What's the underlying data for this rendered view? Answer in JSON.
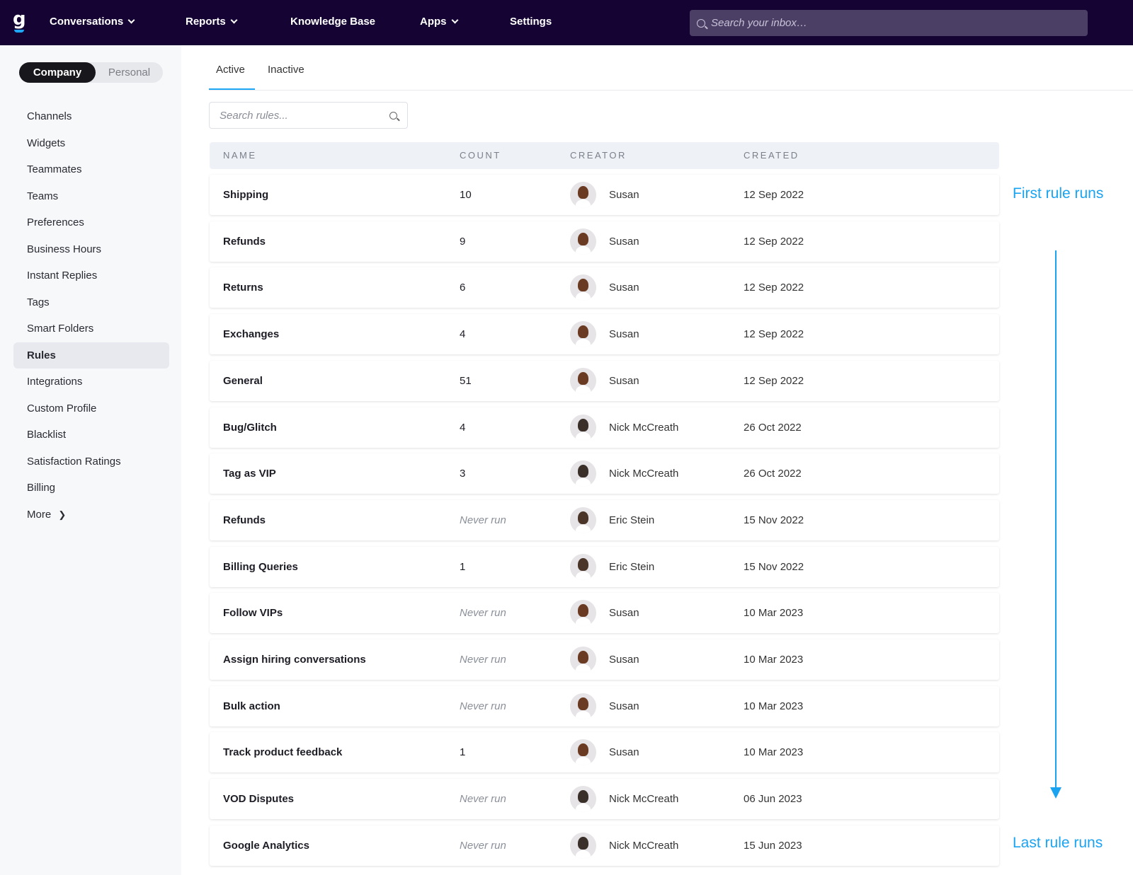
{
  "nav": {
    "logo": "g",
    "items": [
      {
        "label": "Conversations",
        "dropdown": true
      },
      {
        "label": "Reports",
        "dropdown": true
      },
      {
        "label": "Knowledge Base",
        "dropdown": false
      },
      {
        "label": "Apps",
        "dropdown": true
      },
      {
        "label": "Settings",
        "dropdown": false
      }
    ],
    "search_placeholder": "Search your inbox…"
  },
  "sidebar": {
    "toggle": {
      "active": "Company",
      "inactive": "Personal"
    },
    "items": [
      "Channels",
      "Widgets",
      "Teammates",
      "Teams",
      "Preferences",
      "Business Hours",
      "Instant Replies",
      "Tags",
      "Smart Folders",
      "Rules",
      "Integrations",
      "Custom Profile",
      "Blacklist",
      "Satisfaction Ratings",
      "Billing",
      "More"
    ],
    "selected": "Rules"
  },
  "tabs": [
    "Active",
    "Inactive"
  ],
  "rules_search_placeholder": "Search rules...",
  "table": {
    "headers": [
      "NAME",
      "COUNT",
      "CREATOR",
      "CREATED"
    ],
    "rows": [
      {
        "name": "Shipping",
        "count": "10",
        "creator": "Susan",
        "created": "12 Sep 2022"
      },
      {
        "name": "Refunds",
        "count": "9",
        "creator": "Susan",
        "created": "12 Sep 2022"
      },
      {
        "name": "Returns",
        "count": "6",
        "creator": "Susan",
        "created": "12 Sep 2022"
      },
      {
        "name": "Exchanges",
        "count": "4",
        "creator": "Susan",
        "created": "12 Sep 2022"
      },
      {
        "name": "General",
        "count": "51",
        "creator": "Susan",
        "created": "12 Sep 2022"
      },
      {
        "name": "Bug/Glitch",
        "count": "4",
        "creator": "Nick McCreath",
        "created": "26 Oct 2022"
      },
      {
        "name": "Tag as VIP",
        "count": "3",
        "creator": "Nick McCreath",
        "created": "26 Oct 2022"
      },
      {
        "name": "Refunds",
        "count": "Never run",
        "creator": "Eric Stein",
        "created": "15 Nov 2022"
      },
      {
        "name": "Billing Queries",
        "count": "1",
        "creator": "Eric Stein",
        "created": "15 Nov 2022"
      },
      {
        "name": "Follow VIPs",
        "count": "Never run",
        "creator": "Susan",
        "created": "10 Mar 2023"
      },
      {
        "name": "Assign hiring conversations",
        "count": "Never run",
        "creator": "Susan",
        "created": "10 Mar 2023"
      },
      {
        "name": "Bulk action",
        "count": "Never run",
        "creator": "Susan",
        "created": "10 Mar 2023"
      },
      {
        "name": "Track product feedback",
        "count": "1",
        "creator": "Susan",
        "created": "10 Mar 2023"
      },
      {
        "name": "VOD Disputes",
        "count": "Never run",
        "creator": "Nick McCreath",
        "created": "06 Jun 2023"
      },
      {
        "name": "Google Analytics",
        "count": "Never run",
        "creator": "Nick McCreath",
        "created": "15 Jun 2023"
      }
    ]
  },
  "annotations": {
    "first": "First rule runs",
    "last": "Last rule runs",
    "color": "#1aa3f0"
  }
}
